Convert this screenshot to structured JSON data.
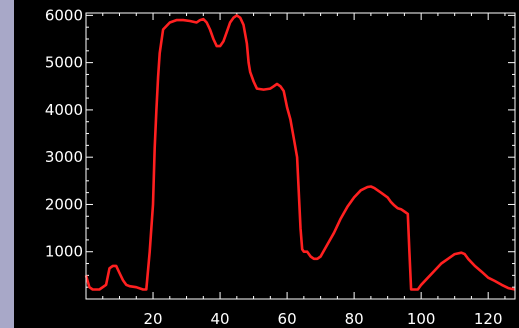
{
  "colors": {
    "background": "#000000",
    "axis": "#ffffff",
    "line": "#ff2020",
    "window": "#a8a8c8"
  },
  "chart_data": {
    "type": "line",
    "title": "",
    "xlabel": "",
    "ylabel": "",
    "xlim": [
      0,
      128
    ],
    "ylim": [
      0,
      6050
    ],
    "xticks": [
      20,
      40,
      60,
      80,
      100,
      120
    ],
    "xtick_labels": [
      "20",
      "40",
      "60",
      "80",
      "100",
      "120"
    ],
    "yticks": [
      1000,
      2000,
      3000,
      4000,
      5000,
      6000
    ],
    "ytick_labels": [
      "1000",
      "2000",
      "3000",
      "4000",
      "5000",
      "6000"
    ],
    "grid": false,
    "legend": "none",
    "series": [
      {
        "x": [
          0,
          1,
          2,
          4,
          6,
          7,
          8,
          9,
          10,
          11,
          12,
          13,
          15,
          17,
          18,
          19,
          20,
          20.5,
          21,
          21.5,
          22,
          23,
          25,
          27,
          29,
          31,
          33,
          34,
          35,
          36,
          37,
          38,
          39,
          40,
          41,
          42,
          43,
          44,
          45,
          46,
          47,
          48,
          48.5,
          49,
          50,
          51,
          53,
          55,
          56,
          57,
          58,
          59,
          60,
          61,
          62,
          63,
          64,
          64.5,
          65,
          66,
          67,
          68,
          69,
          70,
          72,
          74,
          76,
          78,
          80,
          82,
          84,
          85,
          86,
          88,
          90,
          91,
          92,
          93,
          94,
          95,
          96,
          96.5,
          97,
          98,
          99,
          100,
          102,
          104,
          106,
          108,
          110,
          112,
          113,
          114,
          116,
          118,
          120,
          122,
          124,
          126,
          128
        ],
        "y": [
          500,
          250,
          200,
          200,
          300,
          650,
          700,
          700,
          550,
          400,
          300,
          270,
          250,
          200,
          200,
          1000,
          2000,
          3200,
          4000,
          4700,
          5200,
          5700,
          5850,
          5900,
          5900,
          5880,
          5850,
          5900,
          5920,
          5850,
          5700,
          5500,
          5350,
          5350,
          5450,
          5650,
          5850,
          5950,
          6000,
          5950,
          5800,
          5400,
          5000,
          4800,
          4600,
          4450,
          4430,
          4450,
          4500,
          4550,
          4500,
          4400,
          4050,
          3800,
          3400,
          3000,
          1500,
          1050,
          1000,
          1000,
          900,
          850,
          850,
          900,
          1150,
          1400,
          1700,
          1950,
          2150,
          2300,
          2370,
          2380,
          2350,
          2250,
          2150,
          2050,
          1980,
          1920,
          1900,
          1850,
          1800,
          1000,
          200,
          200,
          200,
          300,
          450,
          600,
          750,
          850,
          950,
          980,
          950,
          850,
          700,
          580,
          450,
          380,
          300,
          230,
          200
        ]
      }
    ]
  }
}
